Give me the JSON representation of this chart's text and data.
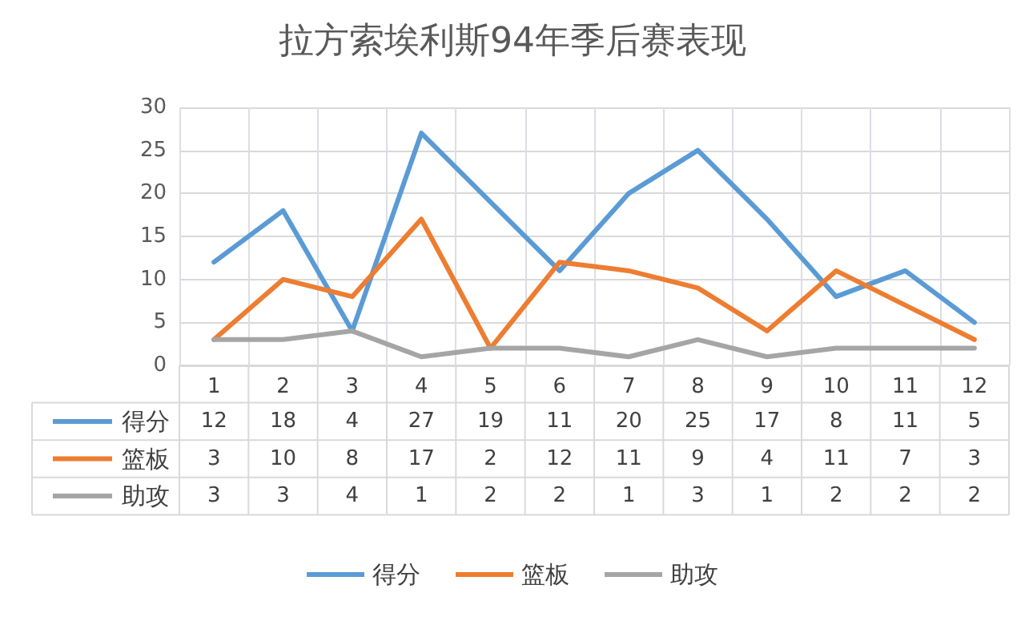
{
  "chart_data": {
    "type": "line",
    "title": "拉方索埃利斯94年季后赛表现",
    "categories": [
      "1",
      "2",
      "3",
      "4",
      "5",
      "6",
      "7",
      "8",
      "9",
      "10",
      "11",
      "12"
    ],
    "series": [
      {
        "name": "得分",
        "color": "#5b9bd5",
        "values": [
          12,
          18,
          4,
          27,
          19,
          11,
          20,
          25,
          17,
          8,
          11,
          5
        ]
      },
      {
        "name": "篮板",
        "color": "#ed7d31",
        "values": [
          3,
          10,
          8,
          17,
          2,
          12,
          11,
          9,
          4,
          11,
          7,
          3
        ]
      },
      {
        "name": "助攻",
        "color": "#a5a5a5",
        "values": [
          3,
          3,
          4,
          1,
          2,
          2,
          1,
          3,
          1,
          2,
          2,
          2
        ]
      }
    ],
    "ylim": [
      0,
      30
    ],
    "yticks": [
      0,
      5,
      10,
      15,
      20,
      25,
      30
    ],
    "grid": true,
    "legend": "bottom",
    "data_labels": true,
    "marker": "none",
    "line_style": "solid"
  }
}
